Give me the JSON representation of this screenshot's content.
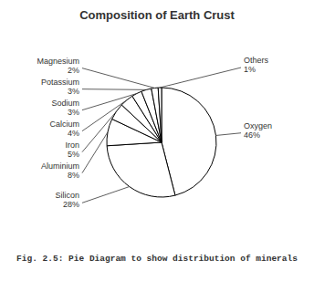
{
  "chart_data": {
    "type": "pie",
    "title": "Composition of Earth Crust",
    "caption": "Fig. 2.5: Pie Diagram to show distribution of minerals",
    "categories": [
      "Oxygen",
      "Silicon",
      "Aluminium",
      "Iron",
      "Calcium",
      "Sodium",
      "Potassium",
      "Magnesium",
      "Others"
    ],
    "values": [
      46,
      28,
      8,
      5,
      4,
      3,
      3,
      2,
      1
    ],
    "value_labels": [
      "46%",
      "28%",
      "8%",
      "5%",
      "4%",
      "3%",
      "3%",
      "2%",
      "1%"
    ],
    "colors": [
      "#ffffff",
      "#ffffff",
      "#ffffff",
      "#ffffff",
      "#ffffff",
      "#ffffff",
      "#ffffff",
      "#ffffff",
      "#ffffff"
    ]
  }
}
